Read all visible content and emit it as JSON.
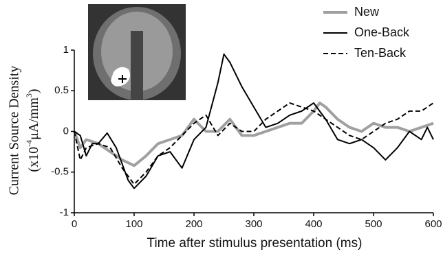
{
  "chart_data": {
    "type": "line",
    "x_label": "Time after stimulus presentation (ms)",
    "y_label": {
      "line1": "Current Source Density",
      "line2": [
        "(x10",
        "-4",
        "μA/mm",
        "3",
        ")"
      ]
    },
    "xlim": [
      0,
      600
    ],
    "xticks": [
      0,
      100,
      200,
      300,
      400,
      500,
      600
    ],
    "ylim": [
      -1,
      1
    ],
    "yticks": [
      -1,
      -0.5,
      0,
      0.5,
      1
    ],
    "legend": "top-right",
    "series": [
      {
        "name": "New",
        "color": "#a0a0a0",
        "style": "solid",
        "width": 4,
        "x": [
          0,
          10,
          20,
          40,
          60,
          80,
          100,
          120,
          140,
          160,
          180,
          200,
          220,
          240,
          260,
          280,
          300,
          320,
          340,
          360,
          380,
          400,
          410,
          420,
          440,
          460,
          480,
          500,
          520,
          540,
          560,
          580,
          600
        ],
        "values": [
          0,
          -0.2,
          -0.1,
          -0.15,
          -0.25,
          -0.35,
          -0.42,
          -0.3,
          -0.15,
          -0.1,
          -0.05,
          0.15,
          0.0,
          0.0,
          0.15,
          -0.05,
          -0.05,
          0.0,
          0.05,
          0.1,
          0.1,
          0.25,
          0.35,
          0.3,
          0.15,
          0.05,
          0.0,
          0.1,
          0.05,
          0.05,
          0.0,
          0.05,
          0.1
        ]
      },
      {
        "name": "One-Back",
        "color": "#000000",
        "style": "solid",
        "width": 2,
        "x": [
          0,
          10,
          20,
          30,
          40,
          55,
          70,
          90,
          100,
          120,
          140,
          160,
          180,
          200,
          220,
          240,
          250,
          260,
          280,
          300,
          320,
          340,
          360,
          380,
          400,
          420,
          440,
          460,
          480,
          500,
          520,
          540,
          560,
          580,
          590,
          600
        ],
        "values": [
          0.0,
          -0.05,
          -0.3,
          -0.15,
          -0.15,
          -0.02,
          -0.2,
          -0.6,
          -0.7,
          -0.55,
          -0.3,
          -0.25,
          -0.45,
          -0.1,
          0.05,
          0.6,
          0.95,
          0.85,
          0.55,
          0.3,
          0.05,
          0.1,
          0.2,
          0.25,
          0.35,
          0.15,
          -0.1,
          -0.15,
          -0.1,
          -0.2,
          -0.35,
          -0.2,
          0.0,
          -0.1,
          0.05,
          -0.1
        ]
      },
      {
        "name": "Ten-Back",
        "color": "#000000",
        "style": "dashed",
        "width": 2,
        "x": [
          0,
          10,
          20,
          40,
          60,
          80,
          100,
          120,
          140,
          160,
          180,
          200,
          220,
          240,
          260,
          280,
          300,
          320,
          340,
          360,
          380,
          400,
          420,
          440,
          460,
          480,
          500,
          520,
          540,
          560,
          580,
          600
        ],
        "values": [
          0,
          -0.35,
          -0.2,
          -0.15,
          -0.2,
          -0.45,
          -0.65,
          -0.5,
          -0.3,
          -0.2,
          -0.05,
          0.1,
          0.2,
          -0.05,
          0.1,
          0.0,
          0.0,
          0.15,
          0.25,
          0.35,
          0.3,
          0.25,
          0.15,
          0.05,
          -0.05,
          -0.1,
          0.0,
          0.1,
          0.15,
          0.25,
          0.25,
          0.35
        ]
      }
    ]
  }
}
